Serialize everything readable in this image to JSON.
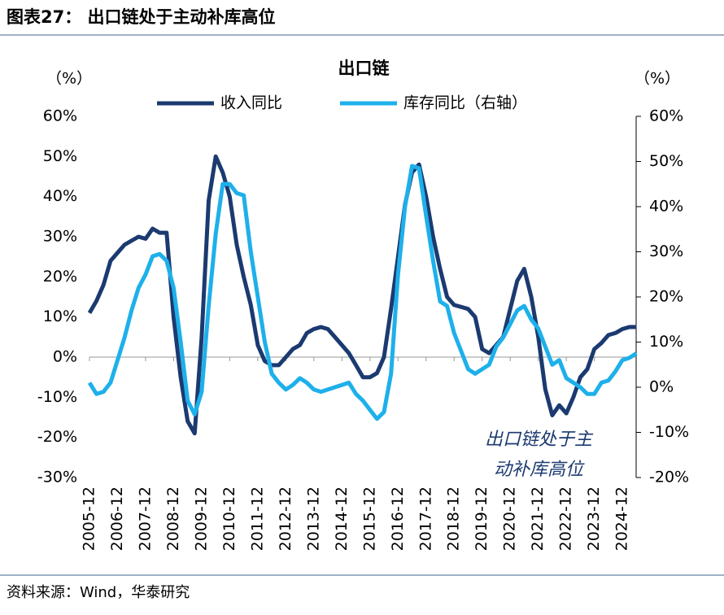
{
  "header": {
    "title": "图表27：  出口链处于主动补库高位",
    "source": "资料来源：Wind，华泰研究"
  },
  "chart_data": {
    "type": "line",
    "title": "出口链",
    "y_label": "（%）",
    "y2_label": "（%）",
    "categories": [
      "2005-12",
      null,
      null,
      null,
      "2006-12",
      null,
      null,
      null,
      "2007-12",
      null,
      null,
      null,
      "2008-12",
      null,
      null,
      null,
      "2009-12",
      null,
      null,
      null,
      "2010-12",
      null,
      null,
      null,
      "2011-12",
      null,
      null,
      null,
      "2012-12",
      null,
      null,
      null,
      "2013-12",
      null,
      null,
      null,
      "2014-12",
      null,
      null,
      null,
      "2015-12",
      null,
      null,
      null,
      "2016-12",
      null,
      null,
      null,
      "2017-12",
      null,
      null,
      null,
      "2018-12",
      null,
      null,
      null,
      "2019-12",
      null,
      null,
      null,
      "2020-12",
      null,
      null,
      null,
      "2021-12",
      null,
      null,
      null,
      "2022-12",
      null,
      null,
      null,
      "2023-12",
      null,
      null,
      null,
      "2024-12",
      null,
      null
    ],
    "series": [
      {
        "name": "收入同比",
        "color": "#1b3a70",
        "axis": "y",
        "values": [
          11,
          14,
          18,
          24,
          26,
          28,
          29,
          30,
          29.5,
          32,
          31,
          31,
          10,
          -5,
          -16,
          -19,
          5,
          39,
          50,
          46,
          40,
          28,
          20,
          13,
          3,
          -1,
          -2,
          -2,
          0,
          2,
          3,
          6,
          7,
          7.5,
          7,
          5,
          3,
          1,
          -2,
          -5,
          -5,
          -4,
          0,
          12,
          25,
          38,
          46,
          48,
          40,
          30,
          22,
          15,
          13,
          12.5,
          12,
          10,
          2,
          1,
          3,
          5,
          12,
          19,
          22,
          15,
          5,
          -8,
          -14.5,
          -12,
          -14,
          -10,
          -5,
          -3,
          2,
          3.5,
          5.5,
          6,
          7,
          7.5,
          7.5
        ]
      },
      {
        "name": "库存同比（右轴）",
        "color": "#1eb0ea",
        "axis": "y2",
        "values": [
          1,
          -1.5,
          -1,
          1,
          6,
          11,
          17,
          22,
          25,
          29,
          29.5,
          28,
          22,
          10,
          -3,
          -6,
          -1,
          18,
          34,
          45,
          45,
          43,
          42.5,
          30,
          20,
          10,
          3,
          1,
          -0.5,
          0.5,
          2,
          1,
          -0.5,
          -1,
          -0.5,
          0,
          0.5,
          1,
          -1.5,
          -3,
          -5,
          -7,
          -5.5,
          3,
          25,
          40,
          49,
          48.5,
          38,
          28,
          19,
          18,
          12,
          8,
          4,
          3,
          4,
          5,
          9,
          11,
          14,
          17,
          18,
          15,
          13,
          9,
          5,
          6,
          2,
          1,
          0,
          -1.5,
          -1.5,
          1,
          1.5,
          3.5,
          6,
          6.5,
          7.5
        ]
      }
    ],
    "ylim": [
      -30,
      60
    ],
    "yticks": [
      {
        "value": -30,
        "label": "-30%"
      },
      {
        "value": -20,
        "label": "-20%"
      },
      {
        "value": -10,
        "label": "-10%"
      },
      {
        "value": 0,
        "label": "0%"
      },
      {
        "value": 10,
        "label": "10%"
      },
      {
        "value": 20,
        "label": "20%"
      },
      {
        "value": 30,
        "label": "30%"
      },
      {
        "value": 40,
        "label": "40%"
      },
      {
        "value": 50,
        "label": "50%"
      },
      {
        "value": 60,
        "label": "60%"
      }
    ],
    "y2lim": [
      -20,
      60
    ],
    "y2ticks": [
      {
        "value": -20,
        "label": "-20%"
      },
      {
        "value": -10,
        "label": "-10%"
      },
      {
        "value": 0,
        "label": "0%"
      },
      {
        "value": 10,
        "label": "10%"
      },
      {
        "value": 20,
        "label": "20%"
      },
      {
        "value": 30,
        "label": "30%"
      },
      {
        "value": 40,
        "label": "40%"
      },
      {
        "value": 50,
        "label": "50%"
      },
      {
        "value": 60,
        "label": "60%"
      }
    ],
    "annotation": [
      "出口链处于主",
      "动补库高位"
    ]
  }
}
